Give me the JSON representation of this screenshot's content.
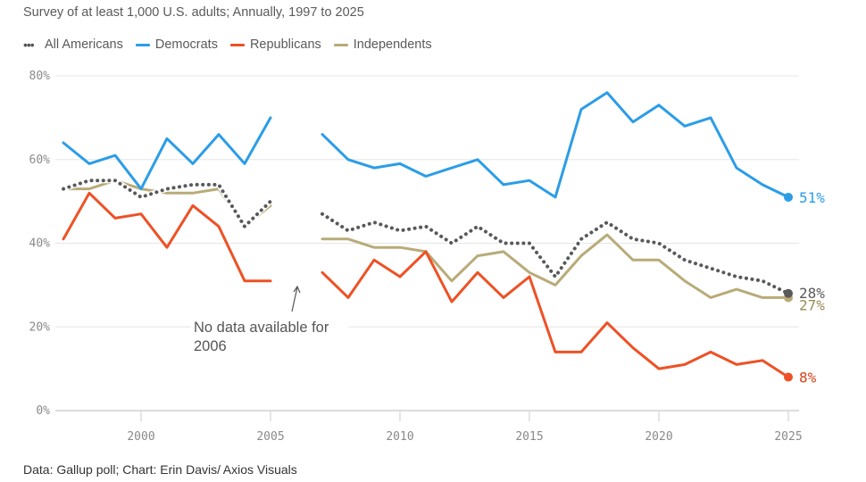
{
  "subtitle": "Survey of at least 1,000 U.S. adults; Annually, 1997 to 2025",
  "footer": "Data: Gallup poll; Chart: Erin Davis/ Axios Visuals",
  "legend": [
    {
      "name": "All Americans",
      "color": "#58595b",
      "style": "dotted"
    },
    {
      "name": "Democrats",
      "color": "#2b9de8",
      "style": "solid"
    },
    {
      "name": "Republicans",
      "color": "#ee5125",
      "style": "solid"
    },
    {
      "name": "Independents",
      "color": "#b9ab78",
      "style": "solid"
    }
  ],
  "chart_data": {
    "type": "line",
    "title": "",
    "subtitle": "Survey of at least 1,000 U.S. adults; Annually, 1997 to 2025",
    "xlabel": "",
    "ylabel": "",
    "x": [
      1997,
      1998,
      1999,
      2000,
      2001,
      2002,
      2003,
      2004,
      2005,
      2006,
      2007,
      2008,
      2009,
      2010,
      2011,
      2012,
      2013,
      2014,
      2015,
      2016,
      2017,
      2018,
      2019,
      2020,
      2021,
      2022,
      2023,
      2024,
      2025
    ],
    "xlim": [
      1997,
      2025
    ],
    "ylim": [
      0,
      80
    ],
    "xticks": [
      2000,
      2005,
      2010,
      2015,
      2020,
      2025
    ],
    "xtick_labels": [
      "2000",
      "2005",
      "2010",
      "2015",
      "2020",
      "2025"
    ],
    "yticks": [
      0,
      20,
      40,
      60,
      80
    ],
    "ytick_labels": [
      "0%",
      "20%",
      "40%",
      "60%",
      "80%"
    ],
    "grid": true,
    "legend_position": "top-left",
    "series": [
      {
        "name": "All Americans",
        "color": "#58595b",
        "style": "dotted",
        "end_label": "28%",
        "values": [
          53,
          55,
          55,
          51,
          53,
          54,
          54,
          44,
          50,
          null,
          47,
          43,
          45,
          43,
          44,
          40,
          44,
          40,
          40,
          32,
          41,
          45,
          41,
          40,
          36,
          34,
          32,
          31,
          28
        ]
      },
      {
        "name": "Democrats",
        "color": "#2b9de8",
        "style": "solid",
        "end_label": "51%",
        "values": [
          64,
          59,
          61,
          53,
          65,
          59,
          66,
          59,
          70,
          null,
          66,
          60,
          58,
          59,
          56,
          58,
          60,
          54,
          55,
          51,
          72,
          76,
          69,
          73,
          68,
          70,
          58,
          54,
          51
        ]
      },
      {
        "name": "Republicans",
        "color": "#ee5125",
        "style": "solid",
        "end_label": "8%",
        "values": [
          41,
          52,
          46,
          47,
          39,
          49,
          44,
          31,
          31,
          null,
          33,
          27,
          36,
          32,
          38,
          26,
          33,
          27,
          32,
          14,
          14,
          21,
          15,
          10,
          11,
          14,
          11,
          12,
          8
        ]
      },
      {
        "name": "Independents",
        "color": "#b9ab78",
        "style": "solid",
        "end_label": "27%",
        "values": [
          53,
          53,
          55,
          53,
          52,
          52,
          53,
          44,
          49,
          null,
          41,
          41,
          39,
          39,
          38,
          31,
          37,
          38,
          33,
          30,
          37,
          42,
          36,
          36,
          31,
          27,
          29,
          27,
          27
        ]
      }
    ],
    "end_label_colors": {
      "All Americans": "#58595b",
      "Democrats": "#2b9de8",
      "Republicans": "#d9431b",
      "Independents": "#9a8c55"
    },
    "annotations": [
      {
        "text_lines": [
          "No data available for",
          "2006"
        ],
        "target_year": 2006
      }
    ]
  }
}
